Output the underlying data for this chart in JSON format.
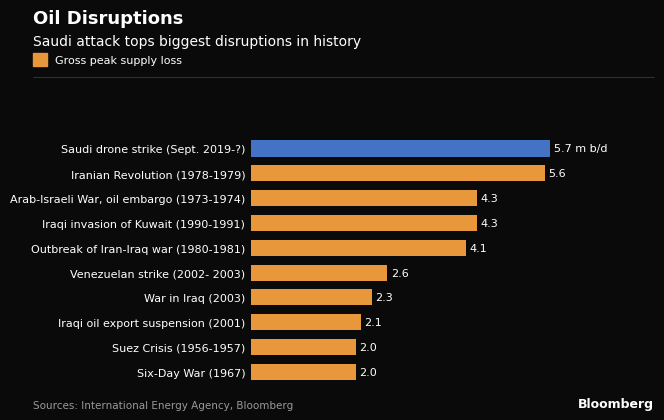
{
  "title": "Oil Disruptions",
  "subtitle": "Saudi attack tops biggest disruptions in history",
  "legend_label": "Gross peak supply loss",
  "categories": [
    "Six-Day War (1967)",
    "Suez Crisis (1956-1957)",
    "Iraqi oil export suspension (2001)",
    "War in Iraq (2003)",
    "Venezuelan strike (2002- 2003)",
    "Outbreak of Iran-Iraq war (1980-1981)",
    "Iraqi invasion of Kuwait (1990-1991)",
    "Arab-Israeli War, oil embargo (1973-1974)",
    "Iranian Revolution (1978-1979)",
    "Saudi drone strike (Sept. 2019-?)"
  ],
  "values": [
    2.0,
    2.0,
    2.1,
    2.3,
    2.6,
    4.1,
    4.3,
    4.3,
    5.6,
    5.7
  ],
  "bar_colors": [
    "#E8973A",
    "#E8973A",
    "#E8973A",
    "#E8973A",
    "#E8973A",
    "#E8973A",
    "#E8973A",
    "#E8973A",
    "#E8973A",
    "#4472C4"
  ],
  "value_labels": [
    "2.0",
    "2.0",
    "2.1",
    "2.3",
    "2.6",
    "4.1",
    "4.3",
    "4.3",
    "5.6",
    "5.7 m b/d"
  ],
  "background_color": "#0a0a0a",
  "text_color": "#ffffff",
  "source_text": "Sources: International Energy Agency, Bloomberg",
  "bloomberg_text": "Bloomberg",
  "xlim": [
    0,
    7.0
  ],
  "bar_height": 0.65,
  "title_fontsize": 13,
  "subtitle_fontsize": 10,
  "label_fontsize": 8,
  "value_fontsize": 8,
  "legend_square_color": "#E8973A",
  "source_color": "#999999"
}
